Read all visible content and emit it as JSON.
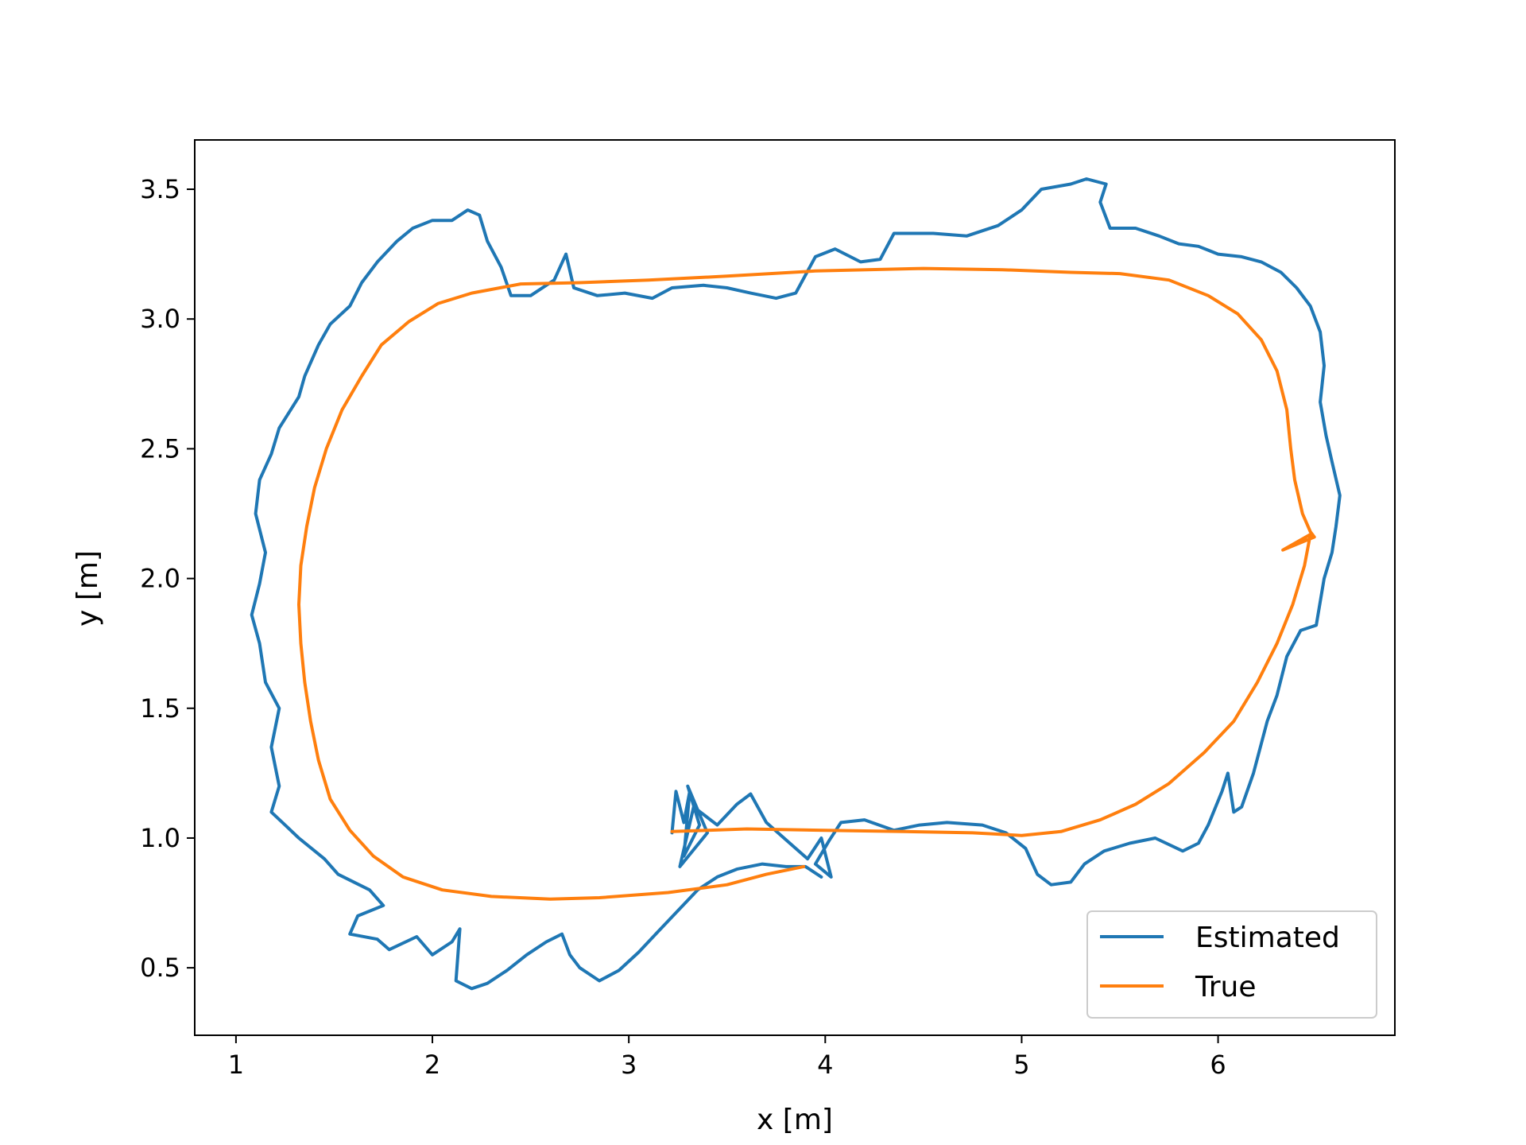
{
  "chart_data": {
    "type": "line",
    "title": "",
    "xlabel": "x [m]",
    "ylabel": "y [m]",
    "xlim": [
      0.79,
      6.9
    ],
    "ylim": [
      0.24,
      3.69
    ],
    "xticks": [
      1,
      2,
      3,
      4,
      5,
      6
    ],
    "xtick_labels": [
      "1",
      "2",
      "3",
      "4",
      "5",
      "6"
    ],
    "yticks": [
      0.5,
      1.0,
      1.5,
      2.0,
      2.5,
      3.0,
      3.5
    ],
    "ytick_labels": [
      "0.5",
      "1.0",
      "1.5",
      "2.0",
      "2.5",
      "3.0",
      "3.5"
    ],
    "grid": false,
    "legend_position": "lower-right",
    "colors": {
      "estimated": "#1f77b4",
      "true": "#ff7f0e",
      "frame": "#000000",
      "legend_border": "#cccccc"
    },
    "series": [
      {
        "name": "Estimated",
        "color": "#1f77b4",
        "points": [
          [
            3.22,
            1.02
          ],
          [
            3.24,
            1.18
          ],
          [
            3.28,
            1.06
          ],
          [
            3.31,
            1.18
          ],
          [
            3.28,
            0.93
          ],
          [
            3.36,
            1.05
          ],
          [
            3.3,
            1.2
          ],
          [
            3.4,
            1.02
          ],
          [
            3.26,
            0.89
          ],
          [
            3.33,
            1.12
          ],
          [
            3.45,
            1.05
          ],
          [
            3.55,
            1.13
          ],
          [
            3.62,
            1.17
          ],
          [
            3.7,
            1.06
          ],
          [
            3.82,
            0.98
          ],
          [
            3.91,
            0.92
          ],
          [
            3.98,
            1.0
          ],
          [
            4.03,
            0.85
          ],
          [
            3.95,
            0.9
          ],
          [
            4.02,
            0.99
          ],
          [
            4.08,
            1.06
          ],
          [
            4.2,
            1.07
          ],
          [
            4.35,
            1.03
          ],
          [
            4.48,
            1.05
          ],
          [
            4.62,
            1.06
          ],
          [
            4.8,
            1.05
          ],
          [
            4.92,
            1.02
          ],
          [
            5.02,
            0.96
          ],
          [
            5.08,
            0.86
          ],
          [
            5.15,
            0.82
          ],
          [
            5.25,
            0.83
          ],
          [
            5.32,
            0.9
          ],
          [
            5.42,
            0.95
          ],
          [
            5.55,
            0.98
          ],
          [
            5.68,
            1.0
          ],
          [
            5.82,
            0.95
          ],
          [
            5.9,
            0.98
          ],
          [
            5.95,
            1.05
          ],
          [
            6.02,
            1.18
          ],
          [
            6.05,
            1.25
          ],
          [
            6.08,
            1.1
          ],
          [
            6.12,
            1.12
          ],
          [
            6.18,
            1.25
          ],
          [
            6.25,
            1.45
          ],
          [
            6.3,
            1.55
          ],
          [
            6.35,
            1.7
          ],
          [
            6.42,
            1.8
          ],
          [
            6.5,
            1.82
          ],
          [
            6.54,
            2.0
          ],
          [
            6.58,
            2.1
          ],
          [
            6.6,
            2.2
          ],
          [
            6.62,
            2.32
          ],
          [
            6.58,
            2.45
          ],
          [
            6.55,
            2.55
          ],
          [
            6.52,
            2.68
          ],
          [
            6.54,
            2.82
          ],
          [
            6.52,
            2.95
          ],
          [
            6.47,
            3.05
          ],
          [
            6.4,
            3.12
          ],
          [
            6.32,
            3.18
          ],
          [
            6.22,
            3.22
          ],
          [
            6.12,
            3.24
          ],
          [
            6.0,
            3.25
          ],
          [
            5.9,
            3.28
          ],
          [
            5.8,
            3.29
          ],
          [
            5.7,
            3.32
          ],
          [
            5.58,
            3.35
          ],
          [
            5.45,
            3.35
          ],
          [
            5.4,
            3.45
          ],
          [
            5.43,
            3.52
          ],
          [
            5.33,
            3.54
          ],
          [
            5.25,
            3.52
          ],
          [
            5.1,
            3.5
          ],
          [
            5.0,
            3.42
          ],
          [
            4.88,
            3.36
          ],
          [
            4.72,
            3.32
          ],
          [
            4.55,
            3.33
          ],
          [
            4.35,
            3.33
          ],
          [
            4.28,
            3.23
          ],
          [
            4.18,
            3.22
          ],
          [
            4.05,
            3.27
          ],
          [
            3.95,
            3.24
          ],
          [
            3.85,
            3.1
          ],
          [
            3.75,
            3.08
          ],
          [
            3.62,
            3.1
          ],
          [
            3.5,
            3.12
          ],
          [
            3.38,
            3.13
          ],
          [
            3.22,
            3.12
          ],
          [
            3.12,
            3.08
          ],
          [
            2.98,
            3.1
          ],
          [
            2.84,
            3.09
          ],
          [
            2.72,
            3.12
          ],
          [
            2.68,
            3.25
          ],
          [
            2.62,
            3.15
          ],
          [
            2.5,
            3.09
          ],
          [
            2.4,
            3.09
          ],
          [
            2.35,
            3.2
          ],
          [
            2.28,
            3.3
          ],
          [
            2.24,
            3.4
          ],
          [
            2.18,
            3.42
          ],
          [
            2.1,
            3.38
          ],
          [
            2.0,
            3.38
          ],
          [
            1.9,
            3.35
          ],
          [
            1.82,
            3.3
          ],
          [
            1.72,
            3.22
          ],
          [
            1.64,
            3.14
          ],
          [
            1.58,
            3.05
          ],
          [
            1.48,
            2.98
          ],
          [
            1.42,
            2.9
          ],
          [
            1.35,
            2.78
          ],
          [
            1.32,
            2.7
          ],
          [
            1.22,
            2.58
          ],
          [
            1.18,
            2.48
          ],
          [
            1.12,
            2.38
          ],
          [
            1.1,
            2.25
          ],
          [
            1.15,
            2.1
          ],
          [
            1.12,
            1.98
          ],
          [
            1.08,
            1.86
          ],
          [
            1.12,
            1.75
          ],
          [
            1.15,
            1.6
          ],
          [
            1.22,
            1.5
          ],
          [
            1.18,
            1.35
          ],
          [
            1.22,
            1.2
          ],
          [
            1.18,
            1.1
          ],
          [
            1.25,
            1.05
          ],
          [
            1.32,
            1.0
          ],
          [
            1.45,
            0.92
          ],
          [
            1.52,
            0.86
          ],
          [
            1.68,
            0.8
          ],
          [
            1.75,
            0.74
          ],
          [
            1.62,
            0.7
          ],
          [
            1.58,
            0.63
          ],
          [
            1.72,
            0.61
          ],
          [
            1.78,
            0.57
          ],
          [
            1.92,
            0.62
          ],
          [
            2.0,
            0.55
          ],
          [
            2.1,
            0.6
          ],
          [
            2.14,
            0.65
          ],
          [
            2.12,
            0.45
          ],
          [
            2.2,
            0.42
          ],
          [
            2.28,
            0.44
          ],
          [
            2.38,
            0.49
          ],
          [
            2.48,
            0.55
          ],
          [
            2.58,
            0.6
          ],
          [
            2.66,
            0.63
          ],
          [
            2.7,
            0.55
          ],
          [
            2.75,
            0.5
          ],
          [
            2.85,
            0.45
          ],
          [
            2.95,
            0.49
          ],
          [
            3.05,
            0.56
          ],
          [
            3.15,
            0.64
          ],
          [
            3.25,
            0.72
          ],
          [
            3.35,
            0.8
          ],
          [
            3.45,
            0.85
          ],
          [
            3.55,
            0.88
          ],
          [
            3.68,
            0.9
          ],
          [
            3.8,
            0.89
          ],
          [
            3.9,
            0.89
          ],
          [
            3.98,
            0.85
          ]
        ]
      },
      {
        "name": "True",
        "color": "#ff7f0e",
        "points": [
          [
            3.89,
            0.89
          ],
          [
            3.7,
            0.86
          ],
          [
            3.5,
            0.82
          ],
          [
            3.2,
            0.79
          ],
          [
            2.85,
            0.77
          ],
          [
            2.6,
            0.765
          ],
          [
            2.3,
            0.775
          ],
          [
            2.05,
            0.8
          ],
          [
            1.85,
            0.85
          ],
          [
            1.7,
            0.93
          ],
          [
            1.58,
            1.03
          ],
          [
            1.48,
            1.15
          ],
          [
            1.42,
            1.3
          ],
          [
            1.38,
            1.45
          ],
          [
            1.35,
            1.6
          ],
          [
            1.33,
            1.75
          ],
          [
            1.32,
            1.9
          ],
          [
            1.33,
            2.05
          ],
          [
            1.36,
            2.2
          ],
          [
            1.4,
            2.35
          ],
          [
            1.46,
            2.5
          ],
          [
            1.54,
            2.65
          ],
          [
            1.64,
            2.78
          ],
          [
            1.74,
            2.9
          ],
          [
            1.88,
            2.99
          ],
          [
            2.03,
            3.06
          ],
          [
            2.2,
            3.1
          ],
          [
            2.45,
            3.135
          ],
          [
            2.75,
            3.14
          ],
          [
            3.1,
            3.15
          ],
          [
            3.5,
            3.165
          ],
          [
            3.95,
            3.185
          ],
          [
            4.5,
            3.195
          ],
          [
            4.9,
            3.19
          ],
          [
            5.25,
            3.18
          ],
          [
            5.5,
            3.175
          ],
          [
            5.75,
            3.15
          ],
          [
            5.95,
            3.09
          ],
          [
            6.1,
            3.02
          ],
          [
            6.22,
            2.92
          ],
          [
            6.3,
            2.8
          ],
          [
            6.35,
            2.65
          ],
          [
            6.37,
            2.5
          ],
          [
            6.39,
            2.38
          ],
          [
            6.43,
            2.25
          ],
          [
            6.47,
            2.18
          ],
          [
            6.49,
            2.16
          ],
          [
            6.33,
            2.11
          ],
          [
            6.47,
            2.17
          ],
          [
            6.44,
            2.05
          ],
          [
            6.38,
            1.9
          ],
          [
            6.3,
            1.75
          ],
          [
            6.2,
            1.6
          ],
          [
            6.08,
            1.45
          ],
          [
            5.93,
            1.33
          ],
          [
            5.75,
            1.21
          ],
          [
            5.58,
            1.13
          ],
          [
            5.4,
            1.07
          ],
          [
            5.2,
            1.025
          ],
          [
            5.0,
            1.01
          ],
          [
            4.75,
            1.02
          ],
          [
            4.4,
            1.025
          ],
          [
            4.0,
            1.03
          ],
          [
            3.6,
            1.035
          ],
          [
            3.4,
            1.03
          ],
          [
            3.22,
            1.025
          ]
        ]
      }
    ]
  }
}
